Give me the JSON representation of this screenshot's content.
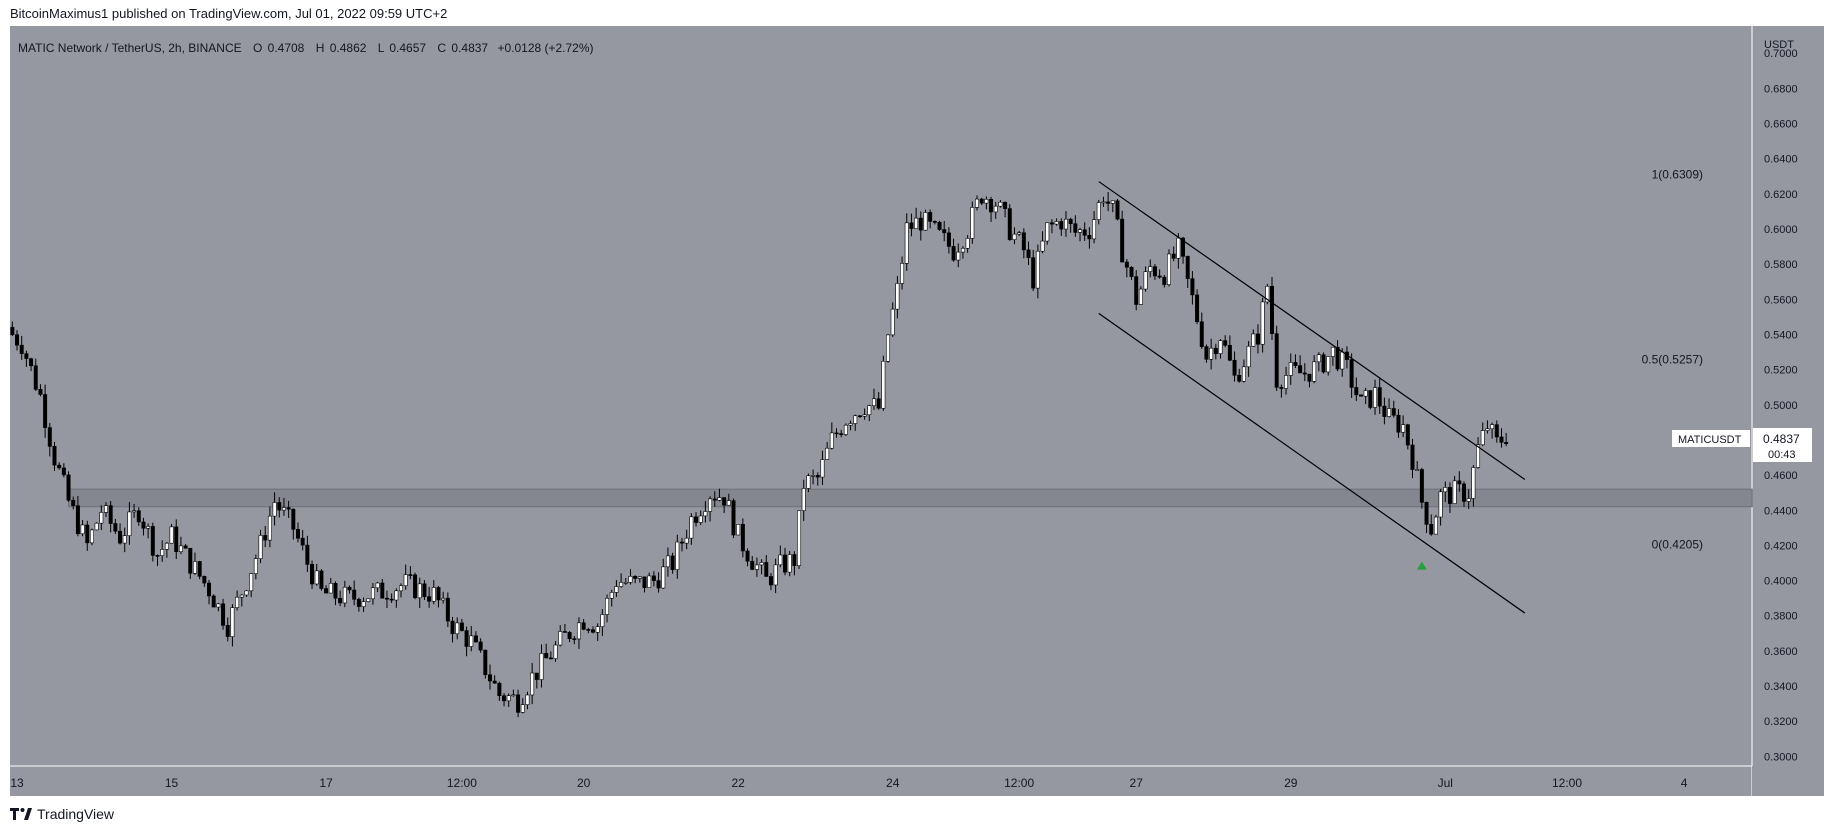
{
  "header": {
    "publisher_line": "BitcoinMaximus1 published on TradingView.com, Jul 01, 2022 09:59 UTC+2"
  },
  "legend": {
    "symbol": "MATIC Network / TetherUS, 2h, BINANCE",
    "o_label": "O",
    "o_value": "0.4708",
    "h_label": "H",
    "h_value": "0.4862",
    "l_label": "L",
    "l_value": "0.4657",
    "c_label": "C",
    "c_value": "0.4837",
    "change": "+0.0128 (+2.72%)"
  },
  "price_axis": {
    "currency": "USDT"
  },
  "price_badge": {
    "ticker": "MATICUSDT",
    "price": "0.4837",
    "countdown": "00:43"
  },
  "footer": {
    "brand": "TradingView"
  },
  "colors": {
    "background": "#9598a1",
    "panel": "#ffffff",
    "candle_up": "#ffffff",
    "candle_down": "#000000",
    "wick": "#000000",
    "channel": "#000000",
    "support_zone": "#7f828b",
    "arrow": "#26a03a"
  },
  "chart_data": {
    "type": "candlestick",
    "timeframe": "2h",
    "ylim": [
      0.2945,
      0.7155
    ],
    "y_ticks": [
      "0.7000",
      "0.6800",
      "0.6600",
      "0.6400",
      "0.6200",
      "0.6000",
      "0.5800",
      "0.5600",
      "0.5400",
      "0.5200",
      "0.5000",
      "0.4800",
      "0.4600",
      "0.4400",
      "0.4200",
      "0.4000",
      "0.3800",
      "0.3600",
      "0.3400",
      "0.3200",
      "0.3000"
    ],
    "x_ticks": [
      {
        "label": "13",
        "bar": 1
      },
      {
        "label": "15",
        "bar": 34
      },
      {
        "label": "17",
        "bar": 67
      },
      {
        "label": "12:00",
        "bar": 96
      },
      {
        "label": "20",
        "bar": 122
      },
      {
        "label": "22",
        "bar": 155
      },
      {
        "label": "24",
        "bar": 188
      },
      {
        "label": "12:00",
        "bar": 215
      },
      {
        "label": "27",
        "bar": 240
      },
      {
        "label": "29",
        "bar": 273
      },
      {
        "label": "Jul",
        "bar": 306
      },
      {
        "label": "12:00",
        "bar": 332
      },
      {
        "label": "4",
        "bar": 357
      }
    ],
    "bars_visible": 372,
    "candle_keypoints": [
      [
        0,
        0.54
      ],
      [
        2,
        0.535
      ],
      [
        6,
        0.505
      ],
      [
        9,
        0.47
      ],
      [
        12,
        0.445
      ],
      [
        16,
        0.42
      ],
      [
        19,
        0.44
      ],
      [
        23,
        0.425
      ],
      [
        27,
        0.44
      ],
      [
        31,
        0.415
      ],
      [
        34,
        0.425
      ],
      [
        38,
        0.41
      ],
      [
        42,
        0.395
      ],
      [
        46,
        0.375
      ],
      [
        50,
        0.4
      ],
      [
        53,
        0.42
      ],
      [
        56,
        0.445
      ],
      [
        60,
        0.43
      ],
      [
        63,
        0.41
      ],
      [
        66,
        0.393
      ],
      [
        72,
        0.39
      ],
      [
        78,
        0.393
      ],
      [
        84,
        0.398
      ],
      [
        90,
        0.392
      ],
      [
        94,
        0.375
      ],
      [
        98,
        0.365
      ],
      [
        101,
        0.35
      ],
      [
        104,
        0.335
      ],
      [
        108,
        0.332
      ],
      [
        111,
        0.345
      ],
      [
        114,
        0.355
      ],
      [
        118,
        0.368
      ],
      [
        122,
        0.378
      ],
      [
        125,
        0.375
      ],
      [
        129,
        0.4
      ],
      [
        133,
        0.398
      ],
      [
        137,
        0.4
      ],
      [
        141,
        0.41
      ],
      [
        145,
        0.435
      ],
      [
        149,
        0.45
      ],
      [
        152,
        0.448
      ],
      [
        155,
        0.425
      ],
      [
        158,
        0.412
      ],
      [
        161,
        0.4
      ],
      [
        164,
        0.408
      ],
      [
        167,
        0.412
      ],
      [
        169,
        0.455
      ],
      [
        172,
        0.458
      ],
      [
        175,
        0.48
      ],
      [
        178,
        0.492
      ],
      [
        182,
        0.5
      ],
      [
        185,
        0.498
      ],
      [
        187,
        0.54
      ],
      [
        189,
        0.565
      ],
      [
        191,
        0.6
      ],
      [
        194,
        0.605
      ],
      [
        197,
        0.598
      ],
      [
        201,
        0.588
      ],
      [
        204,
        0.6
      ],
      [
        207,
        0.62
      ],
      [
        210,
        0.615
      ],
      [
        213,
        0.6
      ],
      [
        216,
        0.588
      ],
      [
        218,
        0.572
      ],
      [
        221,
        0.6
      ],
      [
        224,
        0.605
      ],
      [
        227,
        0.598
      ],
      [
        230,
        0.6
      ],
      [
        233,
        0.62
      ],
      [
        235,
        0.61
      ],
      [
        237,
        0.588
      ],
      [
        240,
        0.56
      ],
      [
        243,
        0.578
      ],
      [
        246,
        0.575
      ],
      [
        249,
        0.588
      ],
      [
        252,
        0.56
      ],
      [
        255,
        0.528
      ],
      [
        258,
        0.54
      ],
      [
        261,
        0.515
      ],
      [
        264,
        0.53
      ],
      [
        266,
        0.54
      ],
      [
        268,
        0.568
      ],
      [
        270,
        0.515
      ],
      [
        273,
        0.518
      ],
      [
        276,
        0.518
      ],
      [
        279,
        0.522
      ],
      [
        282,
        0.53
      ],
      [
        285,
        0.52
      ],
      [
        288,
        0.5
      ],
      [
        291,
        0.506
      ],
      [
        294,
        0.492
      ],
      [
        297,
        0.488
      ],
      [
        299,
        0.47
      ],
      [
        301,
        0.445
      ],
      [
        303,
        0.43
      ],
      [
        305,
        0.448
      ],
      [
        308,
        0.45
      ],
      [
        311,
        0.45
      ],
      [
        313,
        0.475
      ],
      [
        315,
        0.488
      ],
      [
        317,
        0.478
      ],
      [
        319,
        0.483
      ]
    ],
    "annotations": {
      "channel_upper": [
        [
          232,
          0.627
        ],
        [
          323,
          0.4575
        ]
      ],
      "channel_lower": [
        [
          232,
          0.552
        ],
        [
          323,
          0.3815
        ]
      ],
      "support_zone": [
        0.442,
        0.452
      ],
      "support_zone_start_bar": 12,
      "fib_levels": [
        {
          "label": "1(0.6309)",
          "value": 0.6309
        },
        {
          "label": "0.5(0.5257)",
          "value": 0.5257
        },
        {
          "label": "0(0.4205)",
          "value": 0.4205
        }
      ],
      "bounce_arrow": {
        "bar": 301,
        "price": 0.4085
      }
    }
  }
}
